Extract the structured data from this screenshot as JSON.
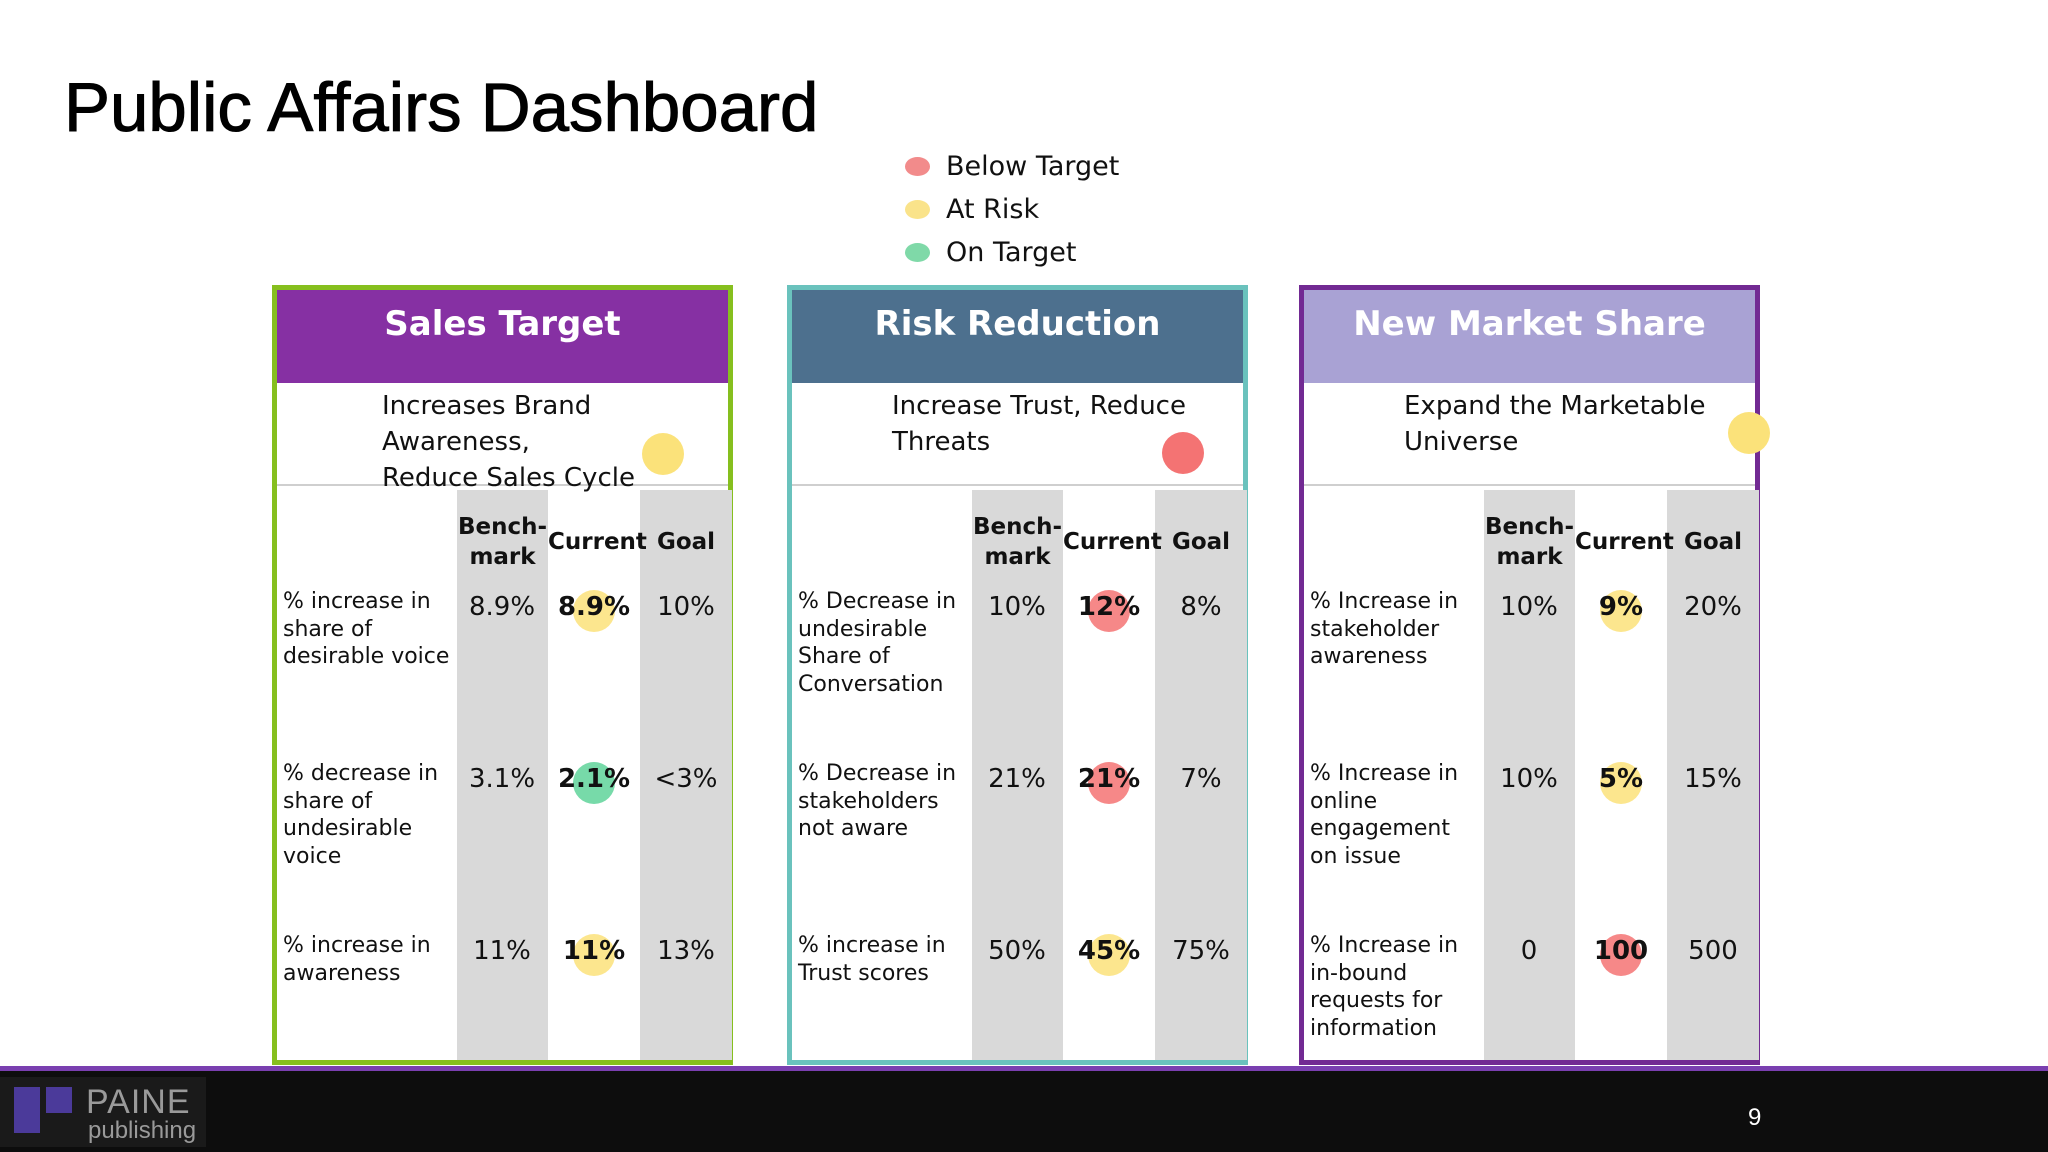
{
  "title": "Public Affairs Dashboard",
  "legend": [
    {
      "label": "Below Target",
      "color": "#f28b8b"
    },
    {
      "label": "At Risk",
      "color": "#fae38a"
    },
    {
      "label": "On Target",
      "color": "#7fd9a8"
    }
  ],
  "status_colors": {
    "red": "#f47373",
    "yellow": "#fbe27a",
    "green": "#5fd39a"
  },
  "columns": [
    "Bench-\nmark",
    "Current",
    "Goal"
  ],
  "panels": [
    {
      "title": "Sales Target",
      "header_color": "#8630a3",
      "border_color": "#86bf1e",
      "subtitle": "Increases Brand Awareness, Reduce Sales Cycle",
      "subtitle_lines": [
        "Increases Brand Awareness,",
        "Reduce Sales Cycle"
      ],
      "status": "yellow",
      "metrics": [
        {
          "label": "% increase in share of desirable voice",
          "benchmark": "8.9%",
          "current": "8.9%",
          "goal": "10%",
          "status": "yellow"
        },
        {
          "label": "% decrease in share of undesirable voice",
          "benchmark": "3.1%",
          "current": "2.1%",
          "goal": "<3%",
          "status": "green"
        },
        {
          "label": "% increase in awareness",
          "benchmark": "11%",
          "current": "11%",
          "goal": "13%",
          "status": "yellow"
        }
      ]
    },
    {
      "title": "Risk Reduction",
      "header_color": "#4d708e",
      "border_color": "#6ac2bd",
      "subtitle": "Increase Trust, Reduce Threats",
      "subtitle_lines": [
        "Increase Trust, Reduce",
        "Threats"
      ],
      "status": "red",
      "metrics": [
        {
          "label": "% Decrease in undesirable Share of Conversation",
          "benchmark": "10%",
          "current": "12%",
          "goal": "8%",
          "status": "red"
        },
        {
          "label": "% Decrease in stakeholders not aware",
          "benchmark": "21%",
          "current": "21%",
          "goal": "7%",
          "status": "red"
        },
        {
          "label": "% increase in Trust scores",
          "benchmark": "50%",
          "current": "45%",
          "goal": "75%",
          "status": "yellow"
        }
      ]
    },
    {
      "title": "New Market Share",
      "header_color": "#a9a2d4",
      "border_color": "#722a93",
      "subtitle": "Expand the Marketable Universe",
      "subtitle_lines": [
        "Expand the Marketable",
        "Universe"
      ],
      "status": "yellow",
      "metrics": [
        {
          "label": "% Increase in stakeholder awareness",
          "benchmark": "10%",
          "current": "9%",
          "goal": "20%",
          "status": "yellow"
        },
        {
          "label": "% Increase in online engagement on issue",
          "benchmark": "10%",
          "current": "5%",
          "goal": "15%",
          "status": "yellow"
        },
        {
          "label": "% Increase in in-bound requests for information",
          "benchmark": "0",
          "current": "100",
          "goal": "500",
          "status": "red"
        }
      ]
    }
  ],
  "footer": {
    "brand_line1": "PAINE",
    "brand_line2": "publishing",
    "page_number": "9"
  }
}
